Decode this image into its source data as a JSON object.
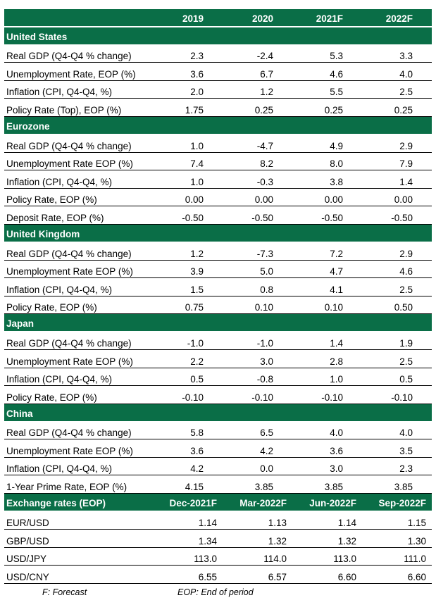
{
  "colors": {
    "header_green": "#0a6e47",
    "header_text": "#ffffff",
    "rule": "#000000"
  },
  "header": {
    "label": "",
    "columns": [
      "2019",
      "2020",
      "2021F",
      "2022F"
    ]
  },
  "sections": [
    {
      "title": "United States",
      "rows": [
        {
          "label": "Real GDP (Q4-Q4 % change)",
          "values": [
            "2.3",
            "-2.4",
            "5.3",
            "3.3"
          ]
        },
        {
          "label": "Unemployment Rate, EOP (%)",
          "values": [
            "3.6",
            "6.7",
            "4.6",
            "4.0"
          ]
        },
        {
          "label": "Inflation (CPI, Q4-Q4, %)",
          "values": [
            "2.0",
            "1.2",
            "5.5",
            "2.5"
          ]
        },
        {
          "label": "Policy Rate (Top), EOP (%)",
          "values": [
            "1.75",
            "0.25",
            "0.25",
            "0.25"
          ]
        }
      ]
    },
    {
      "title": "Eurozone",
      "rows": [
        {
          "label": "Real GDP (Q4-Q4 % change)",
          "values": [
            "1.0",
            "-4.7",
            "4.9",
            "2.9"
          ]
        },
        {
          "label": "Unemployment Rate EOP (%)",
          "values": [
            "7.4",
            "8.2",
            "8.0",
            "7.9"
          ]
        },
        {
          "label": "Inflation (CPI, Q4-Q4, %)",
          "values": [
            "1.0",
            "-0.3",
            "3.8",
            "1.4"
          ]
        },
        {
          "label": "Policy Rate, EOP (%)",
          "values": [
            "0.00",
            "0.00",
            "0.00",
            "0.00"
          ]
        },
        {
          "label": "Deposit Rate, EOP (%)",
          "values": [
            "-0.50",
            "-0.50",
            "-0.50",
            "-0.50"
          ]
        }
      ]
    },
    {
      "title": "United Kingdom",
      "rows": [
        {
          "label": "Real GDP (Q4-Q4 % change)",
          "values": [
            "1.2",
            "-7.3",
            "7.2",
            "2.9"
          ]
        },
        {
          "label": "Unemployment Rate EOP (%)",
          "values": [
            "3.9",
            "5.0",
            "4.7",
            "4.6"
          ]
        },
        {
          "label": "Inflation (CPI, Q4-Q4, %)",
          "values": [
            "1.5",
            "0.8",
            "4.1",
            "2.5"
          ]
        },
        {
          "label": "Policy Rate, EOP (%)",
          "values": [
            "0.75",
            "0.10",
            "0.10",
            "0.50"
          ]
        }
      ]
    },
    {
      "title": "Japan",
      "rows": [
        {
          "label": "Real GDP (Q4-Q4 % change)",
          "values": [
            "-1.0",
            "-1.0",
            "1.4",
            "1.9"
          ]
        },
        {
          "label": "Unemployment Rate EOP (%)",
          "values": [
            "2.2",
            "3.0",
            "2.8",
            "2.5"
          ]
        },
        {
          "label": "Inflation (CPI, Q4-Q4, %)",
          "values": [
            "0.5",
            "-0.8",
            "1.0",
            "0.5"
          ]
        },
        {
          "label": "Policy Rate, EOP (%)",
          "values": [
            "-0.10",
            "-0.10",
            "-0.10",
            "-0.10"
          ]
        }
      ]
    },
    {
      "title": "China",
      "rows": [
        {
          "label": "Real GDP (Q4-Q4 % change)",
          "values": [
            "5.8",
            "6.5",
            "4.0",
            "4.0"
          ]
        },
        {
          "label": "Unemployment Rate EOP (%)",
          "values": [
            "3.6",
            "4.2",
            "3.6",
            "3.5"
          ]
        },
        {
          "label": "Inflation (CPI, Q4-Q4, %)",
          "values": [
            "4.2",
            "0.0",
            "3.0",
            "2.3"
          ]
        },
        {
          "label": "1-Year Prime Rate, EOP (%)",
          "values": [
            "4.15",
            "3.85",
            "3.85",
            "3.85"
          ]
        }
      ]
    }
  ],
  "fx": {
    "title": "Exchange rates (EOP)",
    "columns": [
      "Dec-2021F",
      "Mar-2022F",
      "Jun-2022F",
      "Sep-2022F"
    ],
    "rows": [
      {
        "label": "EUR/USD",
        "values": [
          "1.14",
          "1.13",
          "1.14",
          "1.15"
        ]
      },
      {
        "label": "GBP/USD",
        "values": [
          "1.34",
          "1.32",
          "1.32",
          "1.30"
        ]
      },
      {
        "label": "USD/JPY",
        "values": [
          "113.0",
          "114.0",
          "113.0",
          "111.0"
        ]
      },
      {
        "label": "USD/CNY",
        "values": [
          "6.55",
          "6.57",
          "6.60",
          "6.60"
        ]
      }
    ]
  },
  "footnotes": {
    "forecast": "F: Forecast",
    "eop": "EOP: End of period"
  }
}
